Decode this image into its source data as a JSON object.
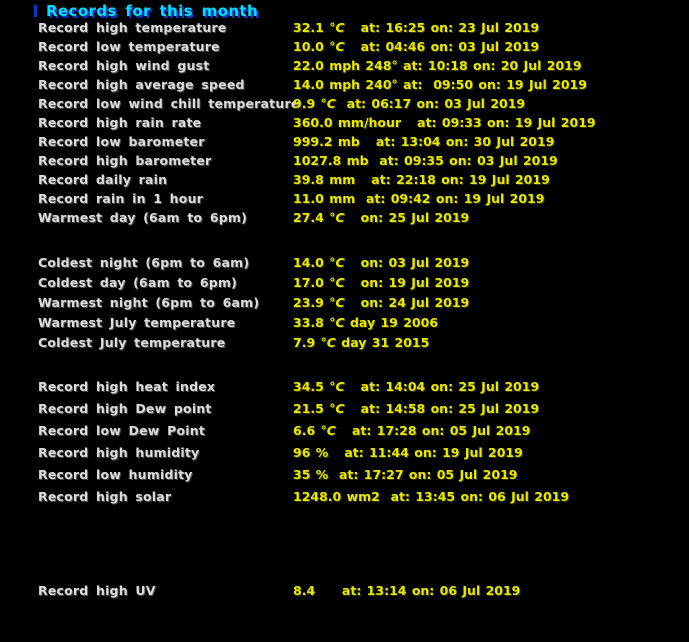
{
  "title": {
    "text": "Records for this month"
  },
  "colors": {
    "background": "#000000",
    "title_text": "#00dfff",
    "title_shadow": "#0a38c8",
    "label_text": "#dcdcdc",
    "value_text": "#e8e800"
  },
  "groups": [
    {
      "rows": [
        {
          "label": "Record high temperature",
          "num": "32.1",
          "unit": "°C",
          "detail": "   at: 16:25 on: 23 Jul 2019"
        },
        {
          "label": "Record low temperature",
          "num": "10.0",
          "unit": "°C",
          "detail": "   at: 04:46 on: 03 Jul 2019"
        },
        {
          "label": "Record high wind gust",
          "num": "22.0",
          "unit": "mph 248°",
          "detail": " at: 10:18 on: 20 Jul 2019"
        },
        {
          "label": "Record high average speed",
          "num": "14.0",
          "unit": "mph 240°",
          "detail": " at:  09:50 on: 19 Jul 2019"
        },
        {
          "label": "Record low wind chill temperature",
          "num": "9.9",
          "unit": "°C",
          "detail": "  at: 06:17 on: 03 Jul 2019"
        },
        {
          "label": "Record high rain rate",
          "num": "360.0",
          "unit": "mm/hour",
          "detail": "   at: 09:33 on: 19 Jul 2019"
        },
        {
          "label": "Record low barometer",
          "num": "999.2",
          "unit": "mb",
          "detail": "   at: 13:04 on: 30 Jul 2019"
        },
        {
          "label": "Record high barometer",
          "num": "1027.8",
          "unit": "mb",
          "detail": "  at: 09:35 on: 03 Jul 2019"
        },
        {
          "label": "Record daily rain",
          "num": "39.8",
          "unit": "mm",
          "detail": "   at: 22:18 on: 19 Jul 2019"
        },
        {
          "label": "Record rain in 1 hour",
          "num": "11.0",
          "unit": "mm",
          "detail": "  at: 09:42 on: 19 Jul 2019"
        },
        {
          "label": "Warmest day (6am to 6pm)",
          "num": "27.4",
          "unit": "°C",
          "detail": "   on: 25 Jul 2019"
        }
      ]
    },
    {
      "rows": [
        {
          "label": "Coldest night (6pm to 6am)",
          "num": "14.0",
          "unit": "°C",
          "detail": "   on: 03 Jul 2019"
        },
        {
          "label": "Coldest day (6am to 6pm)",
          "num": "17.0",
          "unit": "°C",
          "detail": "   on: 19 Jul 2019"
        },
        {
          "label": "Warmest night (6pm to 6am)",
          "num": "23.9",
          "unit": "°C",
          "detail": "   on: 24 Jul 2019"
        },
        {
          "label": "Warmest July temperature",
          "num": "33.8",
          "unit": "°C",
          "detail": " day 19 2006"
        },
        {
          "label": "Coldest July temperature",
          "num": "7.9",
          "unit": "°C",
          "detail": " day 31 2015"
        }
      ]
    },
    {
      "rows": [
        {
          "label": "Record high heat index",
          "num": "34.5",
          "unit": "°C",
          "detail": "   at: 14:04 on: 25 Jul 2019"
        },
        {
          "label": "Record high Dew point",
          "num": "21.5",
          "unit": "°C",
          "detail": "   at: 14:58 on: 25 Jul 2019"
        },
        {
          "label": "Record low Dew Point",
          "num": "6.6",
          "unit": "°C",
          "detail": "   at: 17:28 on: 05 Jul 2019"
        },
        {
          "label": "Record high humidity",
          "num": "96",
          "unit": "%",
          "detail": "   at: 11:44 on: 19 Jul 2019"
        },
        {
          "label": "Record low humidity",
          "num": "35",
          "unit": "%",
          "detail": "  at: 17:27 on: 05 Jul 2019"
        },
        {
          "label": "Record high solar",
          "num": "1248.0",
          "unit": "wm2",
          "detail": "  at: 13:45 on: 06 Jul 2019"
        }
      ]
    },
    {
      "rows": [
        {
          "label": "Record high UV",
          "num": "8.4",
          "unit": "",
          "detail": "     at: 13:14 on: 06 Jul 2019"
        }
      ]
    }
  ]
}
